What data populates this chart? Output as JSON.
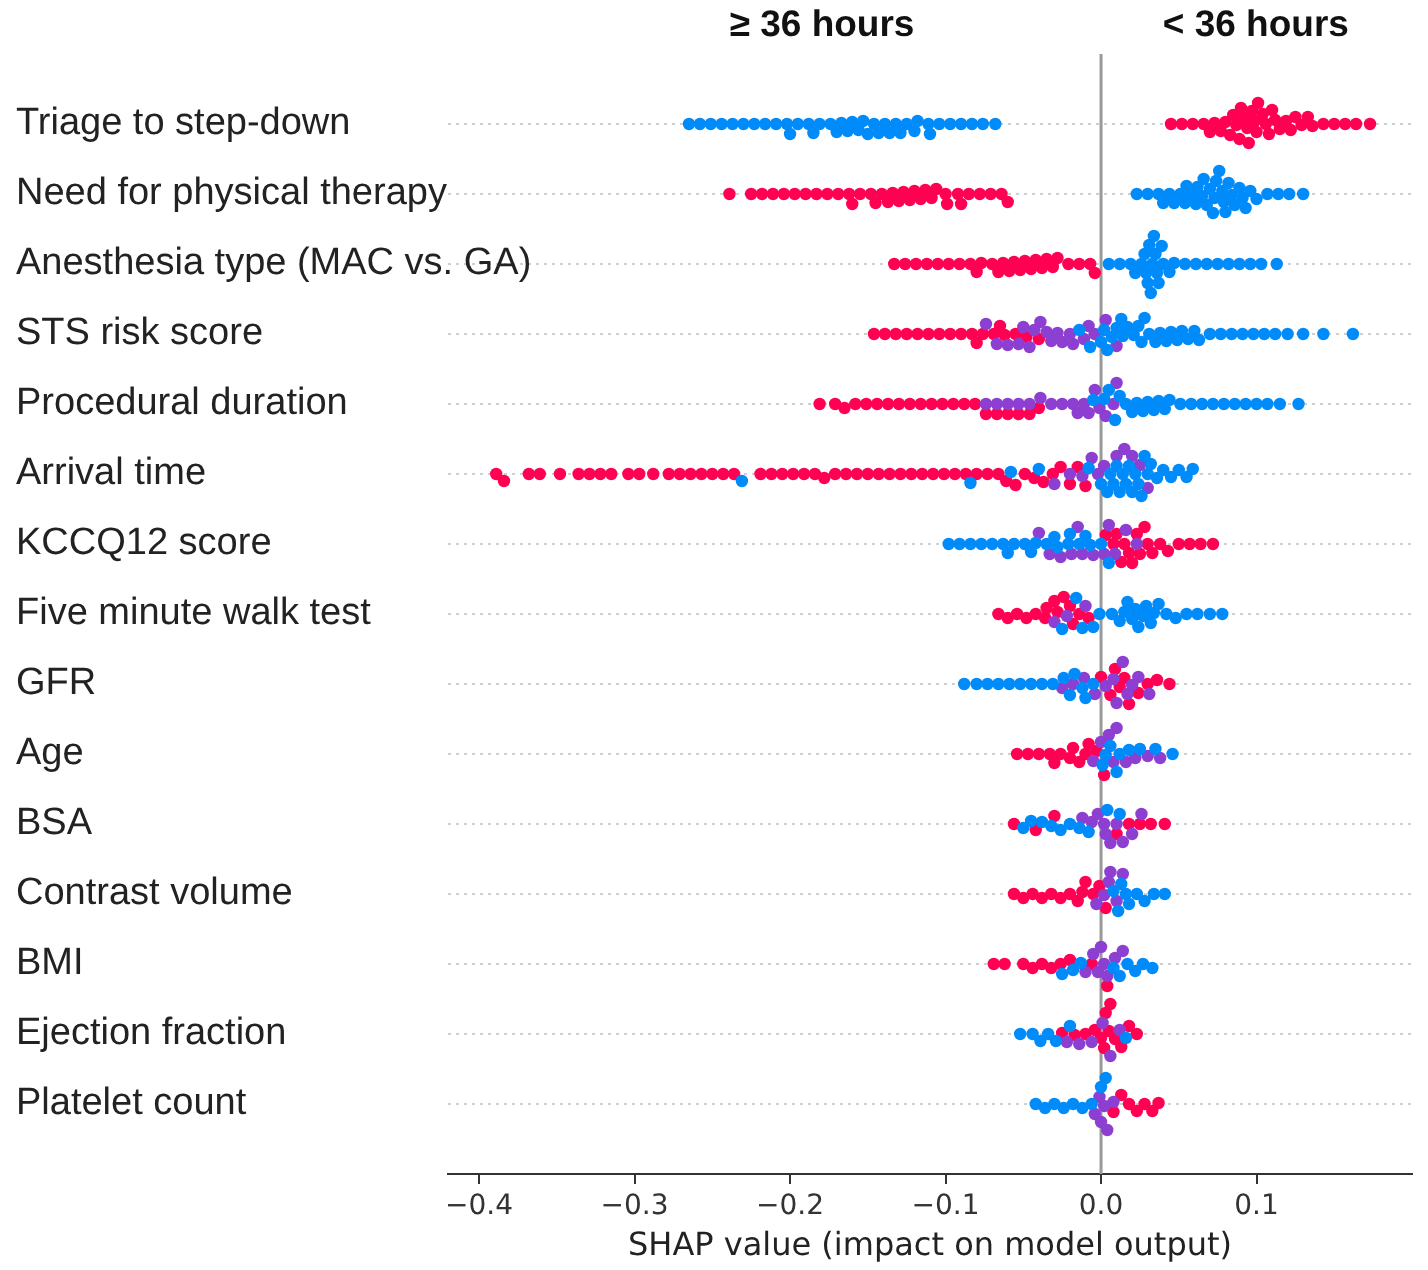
{
  "chart_data": {
    "type": "scatter",
    "orientation": "horizontal",
    "annotations": [
      "≥ 36 hours",
      "< 36 hours"
    ],
    "xlabel": "SHAP value (impact on model output)",
    "categories": [
      "Triage to step-down",
      "Need for physical therapy",
      "Anesthesia type (MAC vs. GA)",
      "STS risk score",
      "Procedural duration",
      "Arrival time",
      "KCCQ12 score",
      "Five minute walk test",
      "GFR",
      "Age",
      "BSA",
      "Contrast volume",
      "BMI",
      "Ejection fraction",
      "Platelet count"
    ],
    "xlim": [
      -0.42,
      0.2
    ],
    "xticks": [
      {
        "value": -0.4,
        "label": "−0.4"
      },
      {
        "value": -0.3,
        "label": "−0.3"
      },
      {
        "value": -0.2,
        "label": "−0.2"
      },
      {
        "value": -0.1,
        "label": "−0.1"
      },
      {
        "value": 0,
        "label": "0.0"
      },
      {
        "value": 0.1,
        "label": "0.1"
      }
    ],
    "grid": "y",
    "marker": "circle",
    "ref_lines": [
      {
        "axis": "x",
        "value": 0,
        "color": "#999999"
      }
    ],
    "series": [
      {
        "color": "#008bfb",
        "x": [
          "Triage to step-down",
          "Triage to step-down",
          "Triage to step-down",
          "Triage to step-down",
          "Triage to step-down",
          "Triage to step-down",
          "Triage to step-down",
          "Triage to step-down",
          "Triage to step-down",
          "Triage to step-down",
          "Triage to step-down",
          "Triage to step-down",
          "Triage to step-down",
          "Triage to step-down",
          "Triage to step-down",
          "Triage to step-down",
          "Triage to step-down",
          "Triage to step-down",
          "Triage to step-down",
          "Triage to step-down",
          "Triage to step-down",
          "Triage to step-down",
          "Triage to step-down",
          "Triage to step-down",
          "Triage to step-down",
          "Triage to step-down",
          "Triage to step-down",
          "Triage to step-down",
          "Triage to step-down",
          "Triage to step-down",
          "Triage to step-down",
          "Triage to step-down",
          "Triage to step-down",
          "Triage to step-down",
          "Triage to step-down",
          "Triage to step-down",
          "Triage to step-down",
          "Triage to step-down",
          "Triage to step-down",
          "Triage to step-down"
        ],
        "values": [
          -0.265,
          -0.258,
          -0.251,
          -0.244,
          -0.237,
          -0.23,
          -0.223,
          -0.216,
          -0.209,
          -0.202,
          -0.195,
          -0.188,
          -0.181,
          -0.174,
          -0.167,
          -0.16,
          -0.153,
          -0.146,
          -0.139,
          -0.132,
          -0.125,
          -0.118,
          -0.111,
          -0.104,
          -0.097,
          -0.09,
          -0.083,
          -0.076,
          -0.068,
          -0.2,
          -0.185,
          -0.17,
          -0.163,
          -0.156,
          -0.15,
          -0.143,
          -0.136,
          -0.129,
          -0.12,
          -0.11
        ]
      },
      {
        "color": "#ff0052",
        "x": [
          "Triage to step-down",
          "Triage to step-down",
          "Triage to step-down",
          "Triage to step-down",
          "Triage to step-down",
          "Triage to step-down",
          "Triage to step-down",
          "Triage to step-down",
          "Triage to step-down",
          "Triage to step-down",
          "Triage to step-down",
          "Triage to step-down",
          "Triage to step-down",
          "Triage to step-down",
          "Triage to step-down",
          "Triage to step-down",
          "Triage to step-down",
          "Triage to step-down",
          "Triage to step-down",
          "Triage to step-down",
          "Triage to step-down",
          "Triage to step-down",
          "Triage to step-down",
          "Triage to step-down",
          "Triage to step-down",
          "Triage to step-down",
          "Triage to step-down",
          "Triage to step-down",
          "Triage to step-down",
          "Triage to step-down",
          "Triage to step-down",
          "Triage to step-down",
          "Triage to step-down",
          "Triage to step-down",
          "Triage to step-down",
          "Triage to step-down",
          "Triage to step-down"
        ],
        "values": [
          0.045,
          0.052,
          0.059,
          0.066,
          0.073,
          0.08,
          0.087,
          0.094,
          0.101,
          0.108,
          0.115,
          0.122,
          0.129,
          0.136,
          0.143,
          0.15,
          0.157,
          0.164,
          0.173,
          0.07,
          0.077,
          0.083,
          0.085,
          0.09,
          0.092,
          0.097,
          0.099,
          0.104,
          0.106,
          0.11,
          0.112,
          0.119,
          0.125,
          0.133,
          0.089,
          0.095,
          0.1
        ]
      },
      {
        "color": "#008bfb",
        "x": [
          "Need for physical therapy",
          "Need for physical therapy",
          "Need for physical therapy",
          "Need for physical therapy",
          "Need for physical therapy",
          "Need for physical therapy",
          "Need for physical therapy",
          "Need for physical therapy",
          "Need for physical therapy",
          "Need for physical therapy",
          "Need for physical therapy",
          "Need for physical therapy",
          "Need for physical therapy",
          "Need for physical therapy",
          "Need for physical therapy",
          "Need for physical therapy",
          "Need for physical therapy",
          "Need for physical therapy",
          "Need for physical therapy",
          "Need for physical therapy",
          "Need for physical therapy",
          "Need for physical therapy",
          "Need for physical therapy",
          "Need for physical therapy",
          "Need for physical therapy",
          "Need for physical therapy",
          "Need for physical therapy",
          "Need for physical therapy",
          "Need for physical therapy",
          "Need for physical therapy",
          "Need for physical therapy",
          "Need for physical therapy",
          "Need for physical therapy",
          "Need for physical therapy",
          "Need for physical therapy"
        ],
        "values": [
          0.023,
          0.03,
          0.037,
          0.044,
          0.051,
          0.058,
          0.065,
          0.072,
          0.079,
          0.086,
          0.093,
          0.1,
          0.107,
          0.114,
          0.121,
          0.13,
          0.04,
          0.047,
          0.055,
          0.061,
          0.068,
          0.07,
          0.074,
          0.076,
          0.078,
          0.082,
          0.089,
          0.096,
          0.062,
          0.084,
          0.066,
          0.073,
          0.08,
          0.054,
          0.091
        ]
      },
      {
        "color": "#ff0052",
        "x": [
          "Need for physical therapy",
          "Need for physical therapy",
          "Need for physical therapy",
          "Need for physical therapy",
          "Need for physical therapy",
          "Need for physical therapy",
          "Need for physical therapy",
          "Need for physical therapy",
          "Need for physical therapy",
          "Need for physical therapy",
          "Need for physical therapy",
          "Need for physical therapy",
          "Need for physical therapy",
          "Need for physical therapy",
          "Need for physical therapy",
          "Need for physical therapy",
          "Need for physical therapy",
          "Need for physical therapy",
          "Need for physical therapy",
          "Need for physical therapy",
          "Need for physical therapy",
          "Need for physical therapy",
          "Need for physical therapy",
          "Need for physical therapy",
          "Need for physical therapy",
          "Need for physical therapy",
          "Need for physical therapy",
          "Need for physical therapy",
          "Need for physical therapy",
          "Need for physical therapy",
          "Need for physical therapy",
          "Need for physical therapy",
          "Need for physical therapy",
          "Need for physical therapy",
          "Need for physical therapy"
        ],
        "values": [
          -0.239,
          -0.225,
          -0.218,
          -0.211,
          -0.204,
          -0.197,
          -0.19,
          -0.183,
          -0.176,
          -0.169,
          -0.162,
          -0.155,
          -0.148,
          -0.141,
          -0.134,
          -0.127,
          -0.12,
          -0.113,
          -0.106,
          -0.099,
          -0.092,
          -0.085,
          -0.078,
          -0.071,
          -0.064,
          -0.06,
          -0.16,
          -0.145,
          -0.137,
          -0.13,
          -0.123,
          -0.116,
          -0.109,
          -0.1,
          -0.09
        ]
      },
      {
        "color": "#008bfb",
        "x": [
          "Anesthesia type (MAC vs. GA)",
          "Anesthesia type (MAC vs. GA)",
          "Anesthesia type (MAC vs. GA)",
          "Anesthesia type (MAC vs. GA)",
          "Anesthesia type (MAC vs. GA)",
          "Anesthesia type (MAC vs. GA)",
          "Anesthesia type (MAC vs. GA)",
          "Anesthesia type (MAC vs. GA)",
          "Anesthesia type (MAC vs. GA)",
          "Anesthesia type (MAC vs. GA)",
          "Anesthesia type (MAC vs. GA)",
          "Anesthesia type (MAC vs. GA)",
          "Anesthesia type (MAC vs. GA)",
          "Anesthesia type (MAC vs. GA)",
          "Anesthesia type (MAC vs. GA)",
          "Anesthesia type (MAC vs. GA)",
          "Anesthesia type (MAC vs. GA)",
          "Anesthesia type (MAC vs. GA)",
          "Anesthesia type (MAC vs. GA)",
          "Anesthesia type (MAC vs. GA)",
          "Anesthesia type (MAC vs. GA)",
          "Anesthesia type (MAC vs. GA)",
          "Anesthesia type (MAC vs. GA)",
          "Anesthesia type (MAC vs. GA)",
          "Anesthesia type (MAC vs. GA)",
          "Anesthesia type (MAC vs. GA)",
          "Anesthesia type (MAC vs. GA)",
          "Anesthesia type (MAC vs. GA)"
        ],
        "values": [
          0.005,
          0.012,
          0.019,
          0.026,
          0.033,
          0.04,
          0.047,
          0.054,
          0.061,
          0.068,
          0.075,
          0.082,
          0.089,
          0.096,
          0.103,
          0.113,
          0.029,
          0.031,
          0.035,
          0.037,
          0.03,
          0.034,
          0.036,
          0.032,
          0.028,
          0.039,
          0.022,
          0.044
        ]
      },
      {
        "color": "#ff0052",
        "x": [
          "Anesthesia type (MAC vs. GA)",
          "Anesthesia type (MAC vs. GA)",
          "Anesthesia type (MAC vs. GA)",
          "Anesthesia type (MAC vs. GA)",
          "Anesthesia type (MAC vs. GA)",
          "Anesthesia type (MAC vs. GA)",
          "Anesthesia type (MAC vs. GA)",
          "Anesthesia type (MAC vs. GA)",
          "Anesthesia type (MAC vs. GA)",
          "Anesthesia type (MAC vs. GA)",
          "Anesthesia type (MAC vs. GA)",
          "Anesthesia type (MAC vs. GA)",
          "Anesthesia type (MAC vs. GA)",
          "Anesthesia type (MAC vs. GA)",
          "Anesthesia type (MAC vs. GA)",
          "Anesthesia type (MAC vs. GA)",
          "Anesthesia type (MAC vs. GA)",
          "Anesthesia type (MAC vs. GA)",
          "Anesthesia type (MAC vs. GA)",
          "Anesthesia type (MAC vs. GA)",
          "Anesthesia type (MAC vs. GA)",
          "Anesthesia type (MAC vs. GA)",
          "Anesthesia type (MAC vs. GA)",
          "Anesthesia type (MAC vs. GA)",
          "Anesthesia type (MAC vs. GA)",
          "Anesthesia type (MAC vs. GA)",
          "Anesthesia type (MAC vs. GA)"
        ],
        "values": [
          -0.133,
          -0.126,
          -0.119,
          -0.112,
          -0.105,
          -0.098,
          -0.091,
          -0.084,
          -0.077,
          -0.07,
          -0.063,
          -0.056,
          -0.049,
          -0.042,
          -0.035,
          -0.028,
          -0.021,
          -0.014,
          -0.007,
          -0.004,
          -0.08,
          -0.066,
          -0.052,
          -0.045,
          -0.038,
          -0.031,
          -0.059
        ]
      },
      {
        "color": "#008bfb",
        "x": [
          "STS risk score",
          "STS risk score",
          "STS risk score",
          "STS risk score",
          "STS risk score",
          "STS risk score",
          "STS risk score",
          "STS risk score",
          "STS risk score",
          "STS risk score",
          "STS risk score",
          "STS risk score",
          "STS risk score",
          "STS risk score",
          "STS risk score",
          "STS risk score",
          "STS risk score",
          "STS risk score",
          "STS risk score",
          "STS risk score",
          "STS risk score",
          "STS risk score",
          "STS risk score",
          "STS risk score",
          "STS risk score",
          "STS risk score",
          "STS risk score",
          "STS risk score",
          "STS risk score",
          "STS risk score",
          "STS risk score",
          "STS risk score",
          "STS risk score",
          "STS risk score",
          "STS risk score"
        ],
        "values": [
          -0.014,
          -0.007,
          0,
          0.007,
          0.014,
          0.021,
          0.028,
          0.035,
          0.042,
          0.049,
          0.056,
          0.063,
          0.07,
          0.077,
          0.084,
          0.091,
          0.098,
          0.105,
          0.112,
          0.12,
          0.13,
          0.143,
          0.162,
          0.004,
          0.01,
          0.017,
          0.024,
          0.031,
          0.038,
          0.045,
          0.002,
          0.013,
          0.026,
          0.052,
          0.06
        ]
      },
      {
        "color": "#8c3fd0",
        "x": [
          "STS risk score",
          "STS risk score",
          "STS risk score",
          "STS risk score",
          "STS risk score",
          "STS risk score",
          "STS risk score",
          "STS risk score",
          "STS risk score",
          "STS risk score",
          "STS risk score",
          "STS risk score",
          "STS risk score",
          "STS risk score",
          "STS risk score",
          "STS risk score",
          "STS risk score",
          "STS risk score",
          "STS risk score"
        ],
        "values": [
          -0.074,
          -0.067,
          -0.06,
          -0.053,
          -0.046,
          -0.039,
          -0.032,
          -0.025,
          -0.018,
          -0.011,
          -0.004,
          0.003,
          -0.05,
          -0.035,
          -0.02,
          -0.043,
          -0.028,
          -0.008,
          0.01
        ]
      },
      {
        "color": "#ff0052",
        "x": [
          "STS risk score",
          "STS risk score",
          "STS risk score",
          "STS risk score",
          "STS risk score",
          "STS risk score",
          "STS risk score",
          "STS risk score",
          "STS risk score",
          "STS risk score",
          "STS risk score",
          "STS risk score",
          "STS risk score",
          "STS risk score",
          "STS risk score",
          "STS risk score",
          "STS risk score",
          "STS risk score"
        ],
        "values": [
          -0.146,
          -0.139,
          -0.132,
          -0.125,
          -0.118,
          -0.111,
          -0.104,
          -0.097,
          -0.09,
          -0.083,
          -0.076,
          -0.069,
          -0.062,
          -0.055,
          -0.048,
          -0.04,
          -0.08,
          -0.065
        ]
      },
      {
        "color": "#008bfb",
        "x": [
          "Procedural duration",
          "Procedural duration",
          "Procedural duration",
          "Procedural duration",
          "Procedural duration",
          "Procedural duration",
          "Procedural duration",
          "Procedural duration",
          "Procedural duration",
          "Procedural duration",
          "Procedural duration",
          "Procedural duration",
          "Procedural duration",
          "Procedural duration",
          "Procedural duration",
          "Procedural duration",
          "Procedural duration",
          "Procedural duration",
          "Procedural duration",
          "Procedural duration",
          "Procedural duration",
          "Procedural duration",
          "Procedural duration",
          "Procedural duration",
          "Procedural duration"
        ],
        "values": [
          -0.005,
          0.002,
          0.009,
          0.016,
          0.023,
          0.03,
          0.037,
          0.044,
          0.051,
          0.058,
          0.065,
          0.072,
          0.079,
          0.086,
          0.093,
          0.1,
          0.107,
          0.115,
          0.127,
          0.005,
          0.012,
          0.02,
          0.027,
          0.034,
          0.041
        ]
      },
      {
        "color": "#8c3fd0",
        "x": [
          "Procedural duration",
          "Procedural duration",
          "Procedural duration",
          "Procedural duration",
          "Procedural duration",
          "Procedural duration",
          "Procedural duration",
          "Procedural duration",
          "Procedural duration",
          "Procedural duration",
          "Procedural duration",
          "Procedural duration",
          "Procedural duration",
          "Procedural duration",
          "Procedural duration",
          "Procedural duration",
          "Procedural duration"
        ],
        "values": [
          -0.074,
          -0.067,
          -0.06,
          -0.053,
          -0.046,
          -0.039,
          -0.032,
          -0.025,
          -0.018,
          -0.011,
          -0.004,
          0.003,
          0.008,
          -0.015,
          -0.001,
          0.01,
          -0.008
        ]
      },
      {
        "color": "#ff0052",
        "x": [
          "Procedural duration",
          "Procedural duration",
          "Procedural duration",
          "Procedural duration",
          "Procedural duration",
          "Procedural duration",
          "Procedural duration",
          "Procedural duration",
          "Procedural duration",
          "Procedural duration",
          "Procedural duration",
          "Procedural duration",
          "Procedural duration",
          "Procedural duration",
          "Procedural duration",
          "Procedural duration",
          "Procedural duration",
          "Procedural duration",
          "Procedural duration",
          "Procedural duration",
          "Procedural duration"
        ],
        "values": [
          -0.181,
          -0.171,
          -0.165,
          -0.158,
          -0.151,
          -0.144,
          -0.137,
          -0.13,
          -0.123,
          -0.116,
          -0.109,
          -0.102,
          -0.095,
          -0.088,
          -0.081,
          -0.074,
          -0.067,
          -0.06,
          -0.053,
          -0.046,
          -0.04
        ]
      },
      {
        "color": "#008bfb",
        "x": [
          "Arrival time",
          "Arrival time",
          "Arrival time",
          "Arrival time",
          "Arrival time",
          "Arrival time",
          "Arrival time",
          "Arrival time",
          "Arrival time",
          "Arrival time",
          "Arrival time",
          "Arrival time",
          "Arrival time",
          "Arrival time",
          "Arrival time",
          "Arrival time",
          "Arrival time",
          "Arrival time",
          "Arrival time",
          "Arrival time",
          "Arrival time",
          "Arrival time",
          "Arrival time",
          "Arrival time",
          "Arrival time",
          "Arrival time",
          "Arrival time"
        ],
        "values": [
          -0.231,
          -0.084,
          -0.058,
          -0.04,
          -0.008,
          0,
          0.004,
          0.008,
          0.012,
          0.016,
          0.02,
          0.024,
          0.028,
          0.032,
          0.036,
          0.04,
          0.045,
          0.05,
          0.055,
          0.059,
          0.006,
          0.01,
          0.014,
          0.018,
          0.022,
          0.026,
          0.03
        ]
      },
      {
        "color": "#8c3fd0",
        "x": [
          "Arrival time",
          "Arrival time",
          "Arrival time",
          "Arrival time",
          "Arrival time",
          "Arrival time",
          "Arrival time",
          "Arrival time",
          "Arrival time",
          "Arrival time",
          "Arrival time"
        ],
        "values": [
          -0.03,
          -0.02,
          -0.012,
          -0.006,
          -0.002,
          0.002,
          0.01,
          0.02,
          0.03,
          0.015,
          0.025
        ]
      },
      {
        "color": "#ff0052",
        "x": [
          "Arrival time",
          "Arrival time",
          "Arrival time",
          "Arrival time",
          "Arrival time",
          "Arrival time",
          "Arrival time",
          "Arrival time",
          "Arrival time",
          "Arrival time",
          "Arrival time",
          "Arrival time",
          "Arrival time",
          "Arrival time",
          "Arrival time",
          "Arrival time",
          "Arrival time",
          "Arrival time",
          "Arrival time",
          "Arrival time",
          "Arrival time",
          "Arrival time",
          "Arrival time",
          "Arrival time",
          "Arrival time",
          "Arrival time",
          "Arrival time",
          "Arrival time",
          "Arrival time",
          "Arrival time",
          "Arrival time",
          "Arrival time",
          "Arrival time",
          "Arrival time",
          "Arrival time",
          "Arrival time",
          "Arrival time",
          "Arrival time",
          "Arrival time",
          "Arrival time",
          "Arrival time",
          "Arrival time",
          "Arrival time",
          "Arrival time",
          "Arrival time",
          "Arrival time",
          "Arrival time",
          "Arrival time",
          "Arrival time",
          "Arrival time",
          "Arrival time",
          "Arrival time"
        ],
        "values": [
          -0.389,
          -0.384,
          -0.368,
          -0.361,
          -0.348,
          -0.336,
          -0.329,
          -0.322,
          -0.315,
          -0.304,
          -0.297,
          -0.288,
          -0.278,
          -0.271,
          -0.264,
          -0.257,
          -0.25,
          -0.243,
          -0.236,
          -0.219,
          -0.212,
          -0.205,
          -0.198,
          -0.191,
          -0.184,
          -0.178,
          -0.171,
          -0.164,
          -0.157,
          -0.15,
          -0.143,
          -0.136,
          -0.129,
          -0.122,
          -0.115,
          -0.108,
          -0.101,
          -0.094,
          -0.087,
          -0.08,
          -0.073,
          -0.066,
          -0.061,
          -0.055,
          -0.049,
          -0.043,
          -0.037,
          -0.031,
          -0.026,
          -0.02,
          -0.015,
          -0.01
        ]
      },
      {
        "color": "#008bfb",
        "x": [
          "KCCQ12 score",
          "KCCQ12 score",
          "KCCQ12 score",
          "KCCQ12 score",
          "KCCQ12 score",
          "KCCQ12 score",
          "KCCQ12 score",
          "KCCQ12 score",
          "KCCQ12 score",
          "KCCQ12 score",
          "KCCQ12 score",
          "KCCQ12 score",
          "KCCQ12 score",
          "KCCQ12 score",
          "KCCQ12 score",
          "KCCQ12 score",
          "KCCQ12 score",
          "KCCQ12 score",
          "KCCQ12 score",
          "KCCQ12 score",
          "KCCQ12 score"
        ],
        "values": [
          -0.098,
          -0.091,
          -0.084,
          -0.077,
          -0.07,
          -0.063,
          -0.056,
          -0.049,
          -0.042,
          -0.035,
          -0.028,
          -0.021,
          -0.014,
          -0.007,
          0,
          -0.06,
          -0.045,
          -0.03,
          -0.02,
          -0.01,
          0.005
        ]
      },
      {
        "color": "#8c3fd0",
        "x": [
          "KCCQ12 score",
          "KCCQ12 score",
          "KCCQ12 score",
          "KCCQ12 score",
          "KCCQ12 score",
          "KCCQ12 score",
          "KCCQ12 score",
          "KCCQ12 score",
          "KCCQ12 score",
          "KCCQ12 score",
          "KCCQ12 score",
          "KCCQ12 score"
        ],
        "values": [
          -0.04,
          -0.033,
          -0.026,
          -0.019,
          -0.012,
          -0.005,
          0.002,
          0.009,
          0.016,
          0.023,
          -0.015,
          0.005
        ]
      },
      {
        "color": "#ff0052",
        "x": [
          "KCCQ12 score",
          "KCCQ12 score",
          "KCCQ12 score",
          "KCCQ12 score",
          "KCCQ12 score",
          "KCCQ12 score",
          "KCCQ12 score",
          "KCCQ12 score",
          "KCCQ12 score",
          "KCCQ12 score",
          "KCCQ12 score",
          "KCCQ12 score",
          "KCCQ12 score",
          "KCCQ12 score",
          "KCCQ12 score",
          "KCCQ12 score",
          "KCCQ12 score",
          "KCCQ12 score"
        ],
        "values": [
          0.003,
          0.008,
          0.013,
          0.018,
          0.023,
          0.028,
          0.033,
          0.038,
          0.043,
          0.05,
          0.057,
          0.064,
          0.072,
          0.01,
          0.015,
          0.02,
          0.025,
          0.03
        ]
      },
      {
        "color": "#008bfb",
        "x": [
          "Five minute walk test",
          "Five minute walk test",
          "Five minute walk test",
          "Five minute walk test",
          "Five minute walk test",
          "Five minute walk test",
          "Five minute walk test",
          "Five minute walk test",
          "Five minute walk test",
          "Five minute walk test",
          "Five minute walk test",
          "Five minute walk test",
          "Five minute walk test",
          "Five minute walk test",
          "Five minute walk test",
          "Five minute walk test",
          "Five minute walk test",
          "Five minute walk test",
          "Five minute walk test",
          "Five minute walk test",
          "Five minute walk test",
          "Five minute walk test",
          "Five minute walk test"
        ],
        "values": [
          -0.025,
          -0.016,
          -0.005,
          -0.001,
          0.007,
          0.012,
          0.017,
          0.022,
          0.027,
          0.032,
          0.037,
          0.042,
          0.048,
          0.055,
          0.062,
          0.07,
          0.078,
          0.02,
          0.024,
          0.029,
          0.015,
          0.034,
          -0.012
        ]
      },
      {
        "color": "#8c3fd0",
        "x": [
          "Five minute walk test",
          "Five minute walk test",
          "Five minute walk test"
        ],
        "values": [
          -0.03,
          -0.022,
          -0.01
        ]
      },
      {
        "color": "#ff0052",
        "x": [
          "Five minute walk test",
          "Five minute walk test",
          "Five minute walk test",
          "Five minute walk test",
          "Five minute walk test",
          "Five minute walk test",
          "Five minute walk test",
          "Five minute walk test",
          "Five minute walk test",
          "Five minute walk test",
          "Five minute walk test",
          "Five minute walk test",
          "Five minute walk test",
          "Five minute walk test"
        ],
        "values": [
          -0.066,
          -0.06,
          -0.054,
          -0.048,
          -0.042,
          -0.036,
          -0.03,
          -0.024,
          -0.018,
          -0.014,
          -0.035,
          -0.028,
          -0.02,
          -0.008
        ]
      },
      {
        "color": "#008bfb",
        "x": [
          "GFR",
          "GFR",
          "GFR",
          "GFR",
          "GFR",
          "GFR",
          "GFR",
          "GFR",
          "GFR",
          "GFR",
          "GFR",
          "GFR",
          "GFR",
          "GFR",
          "GFR"
        ],
        "values": [
          -0.088,
          -0.08,
          -0.073,
          -0.066,
          -0.059,
          -0.052,
          -0.045,
          -0.038,
          -0.031,
          -0.024,
          -0.017,
          -0.01,
          -0.005,
          -0.02,
          -0.012
        ]
      },
      {
        "color": "#8c3fd0",
        "x": [
          "GFR",
          "GFR",
          "GFR",
          "GFR",
          "GFR",
          "GFR",
          "GFR",
          "GFR",
          "GFR",
          "GFR",
          "GFR",
          "GFR"
        ],
        "values": [
          -0.025,
          -0.018,
          -0.011,
          -0.004,
          0.003,
          0.01,
          0.017,
          0.024,
          0.031,
          0.008,
          0.014,
          0.02
        ]
      },
      {
        "color": "#ff0052",
        "x": [
          "GFR",
          "GFR",
          "GFR",
          "GFR",
          "GFR",
          "GFR",
          "GFR",
          "GFR",
          "GFR",
          "GFR"
        ],
        "values": [
          0,
          0.006,
          0.012,
          0.018,
          0.024,
          0.03,
          0.036,
          0.044,
          0.015,
          0.009
        ]
      },
      {
        "color": "#008bfb",
        "x": [
          "Age",
          "Age",
          "Age",
          "Age",
          "Age",
          "Age",
          "Age",
          "Age",
          "Age"
        ],
        "values": [
          0.001,
          0.006,
          0.012,
          0.018,
          0.025,
          0.035,
          0.046,
          0.003,
          0.01
        ]
      },
      {
        "color": "#8c3fd0",
        "x": [
          "Age",
          "Age",
          "Age",
          "Age",
          "Age",
          "Age",
          "Age",
          "Age",
          "Age"
        ],
        "values": [
          -0.005,
          0,
          0.005,
          0.01,
          0.016,
          0.022,
          0.03,
          0.038,
          0.008
        ]
      },
      {
        "color": "#ff0052",
        "x": [
          "Age",
          "Age",
          "Age",
          "Age",
          "Age",
          "Age",
          "Age",
          "Age",
          "Age",
          "Age",
          "Age",
          "Age",
          "Age"
        ],
        "values": [
          -0.054,
          -0.047,
          -0.04,
          -0.033,
          -0.026,
          -0.02,
          -0.014,
          -0.008,
          -0.003,
          -0.03,
          -0.018,
          -0.01,
          0.002
        ]
      },
      {
        "color": "#008bfb",
        "x": [
          "BSA",
          "BSA",
          "BSA",
          "BSA",
          "BSA",
          "BSA",
          "BSA",
          "BSA",
          "BSA",
          "BSA"
        ],
        "values": [
          -0.05,
          -0.045,
          -0.038,
          -0.032,
          -0.026,
          -0.02,
          -0.014,
          -0.008,
          0.004,
          0.012
        ]
      },
      {
        "color": "#8c3fd0",
        "x": [
          "BSA",
          "BSA",
          "BSA",
          "BSA",
          "BSA",
          "BSA",
          "BSA",
          "BSA",
          "BSA",
          "BSA"
        ],
        "values": [
          -0.012,
          -0.006,
          -0.002,
          0.002,
          0.006,
          0.01,
          0.014,
          0.02,
          0.026,
          0.003
        ]
      },
      {
        "color": "#ff0052",
        "x": [
          "BSA",
          "BSA",
          "BSA",
          "BSA",
          "BSA",
          "BSA",
          "BSA",
          "BSA"
        ],
        "values": [
          -0.056,
          -0.042,
          -0.03,
          0.018,
          0.025,
          0.032,
          0.041,
          0.01
        ]
      },
      {
        "color": "#008bfb",
        "x": [
          "Contrast volume",
          "Contrast volume",
          "Contrast volume",
          "Contrast volume",
          "Contrast volume",
          "Contrast volume",
          "Contrast volume",
          "Contrast volume",
          "Contrast volume"
        ],
        "values": [
          0.008,
          0.013,
          0.018,
          0.023,
          0.028,
          0.034,
          0.041,
          0.011,
          0.016
        ]
      },
      {
        "color": "#8c3fd0",
        "x": [
          "Contrast volume",
          "Contrast volume",
          "Contrast volume",
          "Contrast volume",
          "Contrast volume",
          "Contrast volume"
        ],
        "values": [
          -0.003,
          0.002,
          0.006,
          0.01,
          0.014,
          0.005
        ]
      },
      {
        "color": "#ff0052",
        "x": [
          "Contrast volume",
          "Contrast volume",
          "Contrast volume",
          "Contrast volume",
          "Contrast volume",
          "Contrast volume",
          "Contrast volume",
          "Contrast volume",
          "Contrast volume",
          "Contrast volume",
          "Contrast volume",
          "Contrast volume",
          "Contrast volume"
        ],
        "values": [
          -0.056,
          -0.05,
          -0.044,
          -0.038,
          -0.032,
          -0.026,
          -0.02,
          -0.015,
          -0.01,
          -0.005,
          -0.001,
          0.003,
          -0.012
        ]
      },
      {
        "color": "#008bfb",
        "x": [
          "BMI",
          "BMI",
          "BMI",
          "BMI",
          "BMI",
          "BMI",
          "BMI",
          "BMI",
          "BMI"
        ],
        "values": [
          -0.025,
          -0.018,
          -0.013,
          0.012,
          0.017,
          0.022,
          0.027,
          0.033,
          0.008
        ]
      },
      {
        "color": "#8c3fd0",
        "x": [
          "BMI",
          "BMI",
          "BMI",
          "BMI",
          "BMI",
          "BMI",
          "BMI",
          "BMI"
        ],
        "values": [
          -0.01,
          -0.005,
          0,
          0.004,
          0.009,
          0.014,
          -0.002,
          0.002
        ]
      },
      {
        "color": "#ff0052",
        "x": [
          "BMI",
          "BMI",
          "BMI",
          "BMI",
          "BMI",
          "BMI",
          "BMI",
          "BMI",
          "BMI",
          "BMI"
        ],
        "values": [
          -0.069,
          -0.062,
          -0.05,
          -0.044,
          -0.038,
          -0.032,
          -0.026,
          -0.02,
          -0.006,
          0.004
        ]
      },
      {
        "color": "#008bfb",
        "x": [
          "Ejection fraction",
          "Ejection fraction",
          "Ejection fraction",
          "Ejection fraction",
          "Ejection fraction",
          "Ejection fraction",
          "Ejection fraction"
        ],
        "values": [
          -0.052,
          -0.044,
          -0.039,
          -0.034,
          -0.029,
          -0.02,
          0.016
        ]
      },
      {
        "color": "#8c3fd0",
        "x": [
          "Ejection fraction",
          "Ejection fraction",
          "Ejection fraction",
          "Ejection fraction",
          "Ejection fraction",
          "Ejection fraction"
        ],
        "values": [
          -0.022,
          -0.014,
          -0.006,
          0.001,
          0.006,
          0.012
        ]
      },
      {
        "color": "#ff0052",
        "x": [
          "Ejection fraction",
          "Ejection fraction",
          "Ejection fraction",
          "Ejection fraction",
          "Ejection fraction",
          "Ejection fraction",
          "Ejection fraction",
          "Ejection fraction",
          "Ejection fraction",
          "Ejection fraction",
          "Ejection fraction",
          "Ejection fraction",
          "Ejection fraction"
        ],
        "values": [
          -0.025,
          -0.017,
          -0.01,
          -0.004,
          0,
          0.003,
          0.006,
          0.009,
          0.013,
          0.018,
          0.023,
          0.002,
          0.005
        ]
      },
      {
        "color": "#008bfb",
        "x": [
          "Platelet count",
          "Platelet count",
          "Platelet count",
          "Platelet count",
          "Platelet count",
          "Platelet count",
          "Platelet count",
          "Platelet count",
          "Platelet count"
        ],
        "values": [
          -0.042,
          -0.036,
          -0.03,
          -0.024,
          -0.018,
          -0.012,
          -0.006,
          0,
          0.003
        ]
      },
      {
        "color": "#8c3fd0",
        "x": [
          "Platelet count",
          "Platelet count",
          "Platelet count",
          "Platelet count",
          "Platelet count",
          "Platelet count"
        ],
        "values": [
          -0.004,
          0,
          0.004,
          0.008,
          -0.001,
          0.002
        ]
      },
      {
        "color": "#ff0052",
        "x": [
          "Platelet count",
          "Platelet count",
          "Platelet count",
          "Platelet count",
          "Platelet count",
          "Platelet count",
          "Platelet count"
        ],
        "values": [
          0.008,
          0.013,
          0.018,
          0.023,
          0.028,
          0.033,
          0.037
        ]
      }
    ]
  }
}
